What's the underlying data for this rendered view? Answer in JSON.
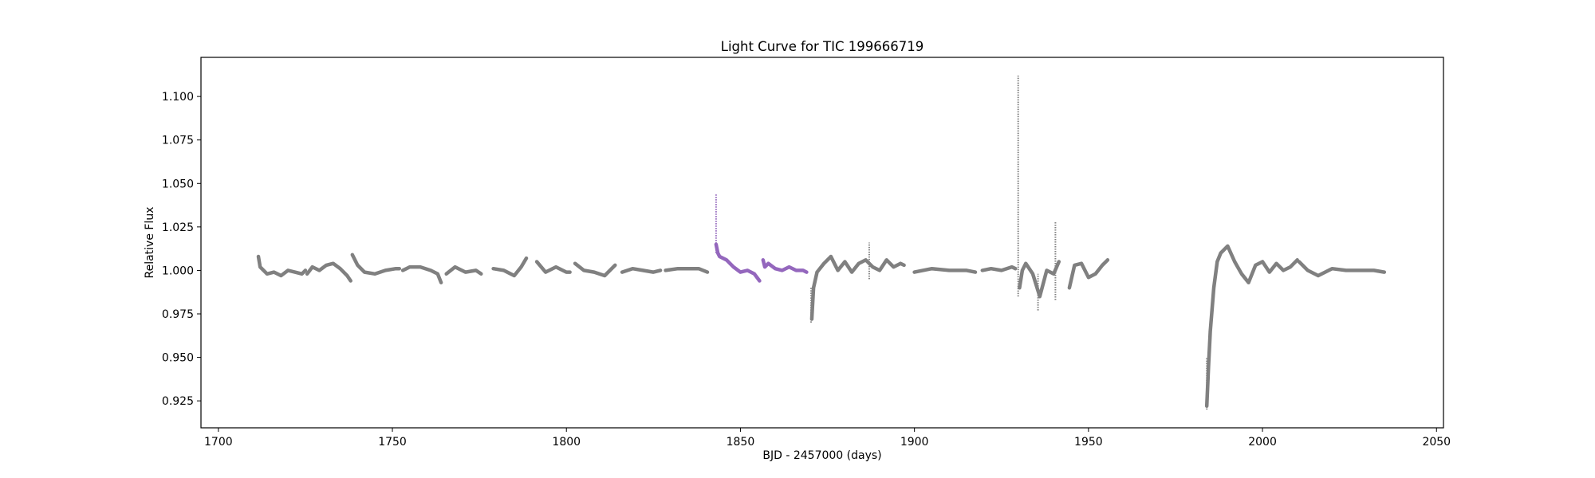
{
  "chart_data": {
    "type": "scatter",
    "title": "Light Curve for TIC 199666719",
    "xlabel": "BJD - 2457000 (days)",
    "ylabel": "Relative Flux",
    "xlim": [
      1695,
      2052
    ],
    "ylim": [
      0.9095,
      1.1225
    ],
    "xticks": [
      1700,
      1750,
      1800,
      1850,
      1900,
      1950,
      2000,
      2050
    ],
    "yticks": [
      0.925,
      0.95,
      0.975,
      1.0,
      1.025,
      1.05,
      1.075,
      1.1
    ],
    "grid": false,
    "legend": "none",
    "colors": {
      "base": "#808080",
      "highlight": "#9467bd"
    },
    "series": [
      {
        "color": "#808080",
        "segments": [
          {
            "x": [
              1711.5,
              1712,
              1714,
              1716,
              1718,
              1720,
              1722,
              1724,
              1725
            ],
            "y": [
              1.008,
              1.002,
              0.998,
              0.999,
              0.997,
              1.0,
              0.999,
              0.998,
              1.0
            ]
          },
          {
            "x": [
              1725.5,
              1727,
              1729,
              1731,
              1733,
              1735,
              1737,
              1738
            ],
            "y": [
              0.998,
              1.002,
              1.0,
              1.003,
              1.004,
              1.001,
              0.997,
              0.994
            ]
          },
          {
            "x": [
              1738.5,
              1740,
              1742,
              1745,
              1748,
              1751,
              1752
            ],
            "y": [
              1.009,
              1.003,
              0.999,
              0.998,
              1.0,
              1.001,
              1.001
            ]
          },
          {
            "x": [
              1753,
              1755,
              1758,
              1761,
              1763,
              1764
            ],
            "y": [
              1.0,
              1.002,
              1.002,
              1.0,
              0.998,
              0.993
            ]
          },
          {
            "x": [
              1765.5,
              1768,
              1771,
              1774,
              1775.5
            ],
            "y": [
              0.998,
              1.002,
              0.999,
              1.0,
              0.998
            ]
          },
          {
            "x": [
              1779,
              1782,
              1785,
              1787,
              1788.5
            ],
            "y": [
              1.001,
              1.0,
              0.997,
              1.002,
              1.007
            ]
          },
          {
            "x": [
              1791.5,
              1794,
              1797,
              1800,
              1801
            ],
            "y": [
              1.005,
              0.999,
              1.002,
              0.999,
              0.999
            ]
          },
          {
            "x": [
              1802.5,
              1805,
              1808,
              1811,
              1814
            ],
            "y": [
              1.004,
              1.0,
              0.999,
              0.997,
              1.003
            ]
          },
          {
            "x": [
              1816,
              1819,
              1822,
              1825,
              1827
            ],
            "y": [
              0.999,
              1.001,
              1.0,
              0.999,
              1.0
            ]
          },
          {
            "x": [
              1828.5,
              1832,
              1836,
              1838,
              1840.5
            ],
            "y": [
              1.0,
              1.001,
              1.001,
              1.001,
              0.999
            ]
          },
          {
            "x": [
              1870.5,
              1871,
              1872,
              1874,
              1876,
              1878,
              1880,
              1882,
              1884,
              1886,
              1888,
              1890,
              1892,
              1894,
              1896,
              1897
            ],
            "y": [
              0.972,
              0.99,
              0.999,
              1.004,
              1.008,
              1.0,
              1.005,
              0.999,
              1.004,
              1.006,
              1.002,
              1.0,
              1.006,
              1.002,
              1.004,
              1.003
            ]
          },
          {
            "x": [
              1900,
              1905,
              1910,
              1915,
              1917.5
            ],
            "y": [
              0.999,
              1.001,
              1.0,
              1.0,
              0.999
            ]
          },
          {
            "x": [
              1919.5,
              1922,
              1925,
              1928,
              1929
            ],
            "y": [
              1.0,
              1.001,
              1.0,
              1.002,
              1.001
            ]
          },
          {
            "x": [
              1930.2,
              1931,
              1932,
              1934,
              1936,
              1938,
              1940,
              1941.5
            ],
            "y": [
              0.99,
              1.0,
              1.004,
              0.998,
              0.985,
              1.0,
              0.998,
              1.005
            ]
          },
          {
            "x": [
              1944.5,
              1946,
              1948,
              1950,
              1952,
              1954,
              1955.5
            ],
            "y": [
              0.99,
              1.003,
              1.004,
              0.996,
              0.998,
              1.003,
              1.006
            ]
          },
          {
            "x": [
              1984,
              1984.5,
              1985,
              1986,
              1987,
              1988,
              1990,
              1992,
              1994,
              1996,
              1998,
              2000,
              2002,
              2004,
              2006,
              2008,
              2010
            ],
            "y": [
              0.922,
              0.945,
              0.965,
              0.99,
              1.005,
              1.01,
              1.014,
              1.005,
              0.998,
              0.993,
              1.003,
              1.005,
              0.999,
              1.004,
              1.0,
              1.002,
              1.006
            ]
          },
          {
            "x": [
              2010.5,
              2013,
              2016,
              2020,
              2024,
              2028,
              2032,
              2035
            ],
            "y": [
              1.005,
              1.0,
              0.997,
              1.001,
              1.0,
              1.0,
              1.0,
              0.999
            ]
          }
        ]
      },
      {
        "color": "#9467bd",
        "segments": [
          {
            "x": [
              1843,
              1843.5,
              1844,
              1846,
              1848,
              1850,
              1852,
              1854,
              1855.5
            ],
            "y": [
              1.015,
              1.01,
              1.008,
              1.006,
              1.002,
              0.999,
              1.0,
              0.998,
              0.994
            ]
          },
          {
            "x": [
              1856.5,
              1857,
              1858,
              1860,
              1862,
              1864,
              1866,
              1868,
              1869
            ],
            "y": [
              1.006,
              1.002,
              1.004,
              1.001,
              1.0,
              1.002,
              1.0,
              1.0,
              0.999
            ]
          }
        ]
      }
    ],
    "spikes": [
      {
        "x": 1843,
        "ymin": 1.01,
        "ymax": 1.044,
        "color": "#9467bd"
      },
      {
        "x": 1929.8,
        "ymin": 0.985,
        "ymax": 1.112,
        "color": "#808080"
      },
      {
        "x": 1940.5,
        "ymin": 0.983,
        "ymax": 1.028,
        "color": "#808080"
      },
      {
        "x": 1870.3,
        "ymin": 0.97,
        "ymax": 0.99,
        "color": "#808080"
      },
      {
        "x": 1984,
        "ymin": 0.92,
        "ymax": 0.95,
        "color": "#808080"
      },
      {
        "x": 1887,
        "ymin": 0.995,
        "ymax": 1.016,
        "color": "#808080"
      },
      {
        "x": 1935.5,
        "ymin": 0.977,
        "ymax": 0.998,
        "color": "#808080"
      }
    ]
  }
}
